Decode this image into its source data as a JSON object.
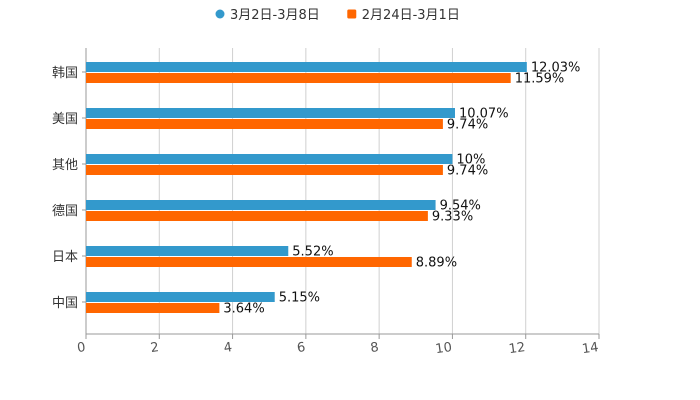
{
  "chart_data": {
    "type": "bar",
    "orientation": "horizontal",
    "categories": [
      "韩国",
      "美国",
      "其他",
      "德国",
      "日本",
      "中国"
    ],
    "series": [
      {
        "name": "3月2日-3月8日",
        "color": "#3399cc",
        "legend_marker": "circle",
        "values": [
          12.03,
          10.07,
          10,
          9.54,
          5.52,
          5.15
        ],
        "labels": [
          "12.03%",
          "10.07%",
          "10%",
          "9.54%",
          "5.52%",
          "5.15%"
        ]
      },
      {
        "name": "2月24日-3月1日",
        "color": "#ff6600",
        "legend_marker": "square",
        "values": [
          11.59,
          9.74,
          9.74,
          9.33,
          8.89,
          3.64
        ],
        "labels": [
          "11.59%",
          "9.74%",
          "9.74%",
          "9.33%",
          "8.89%",
          "3.64%"
        ]
      }
    ],
    "xlim": [
      0,
      14
    ],
    "xticks": [
      0,
      2,
      4,
      6,
      8,
      10,
      12,
      14
    ],
    "grid": true,
    "legend_position": "top-center",
    "title": "",
    "xlabel": "",
    "ylabel": ""
  }
}
